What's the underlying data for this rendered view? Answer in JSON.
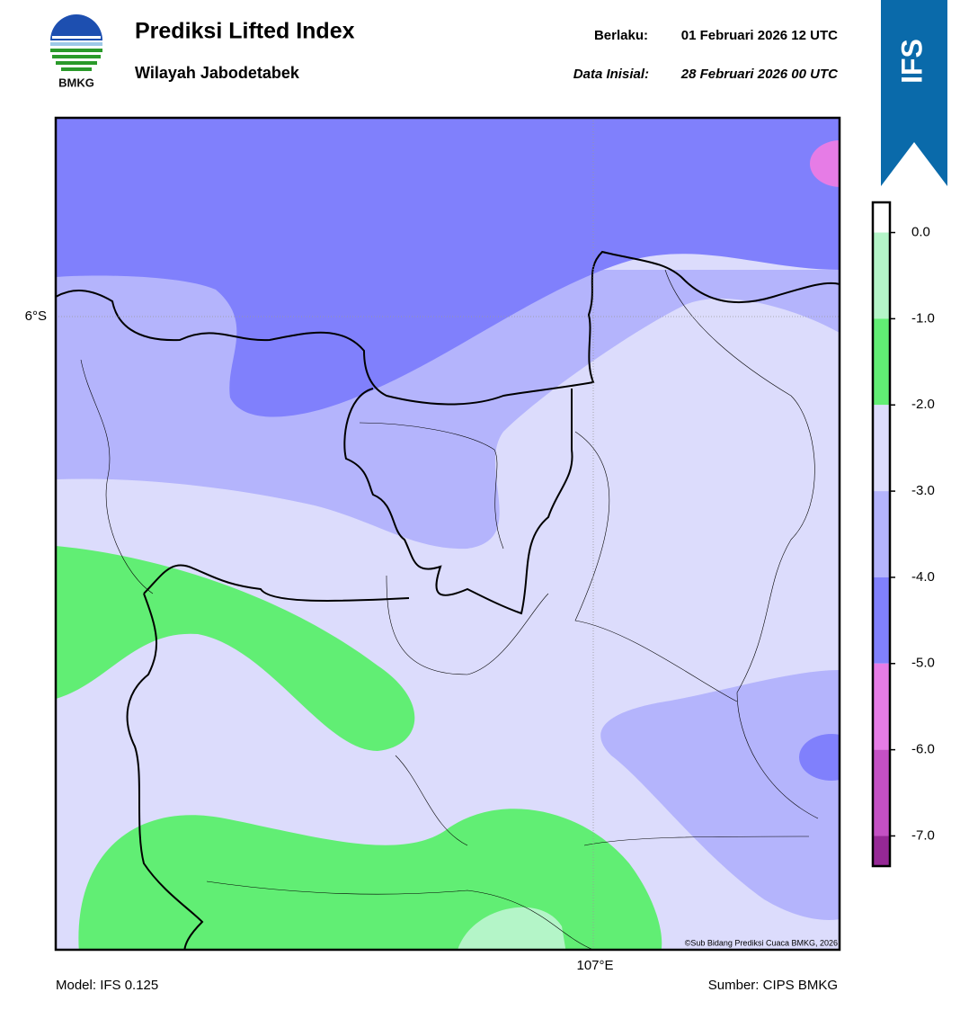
{
  "header": {
    "logo_text": "BMKG",
    "title": "Prediksi Lifted Index",
    "subtitle": "Wilayah Jabodetabek",
    "valid_label": "Berlaku:",
    "valid": "01 Februari 2026 12 UTC",
    "init_label": "Data Inisial:",
    "init": "28 Februari 2026 00 UTC",
    "badge": "IFS"
  },
  "map": {
    "lat_label": "6°S",
    "lon_label": "107°E",
    "credit": "©Sub Bidang Prediksi Cuaca BMKG, 2026"
  },
  "colorbar": {
    "lim": [
      -7.35,
      0.35
    ],
    "ticks": [
      {
        "value": 0,
        "label": "0.0"
      },
      {
        "value": -1,
        "label": "-1.0"
      },
      {
        "value": -2,
        "label": "-2.0"
      },
      {
        "value": -3,
        "label": "-3.0"
      },
      {
        "value": -4,
        "label": "-4.0"
      },
      {
        "value": -5,
        "label": "-5.0"
      },
      {
        "value": -6,
        "label": "-6.0"
      },
      {
        "value": -7,
        "label": "-7.0"
      }
    ],
    "colors": [
      "#ffffff",
      "#b4f5c8",
      "#61ee74",
      "#dcdcfc",
      "#b4b4fc",
      "#8080fc",
      "#e67ce6",
      "#c450c4",
      "#962896"
    ]
  },
  "footer": {
    "model": "Model: IFS 0.125",
    "source": "Sumber: CIPS BMKG"
  }
}
